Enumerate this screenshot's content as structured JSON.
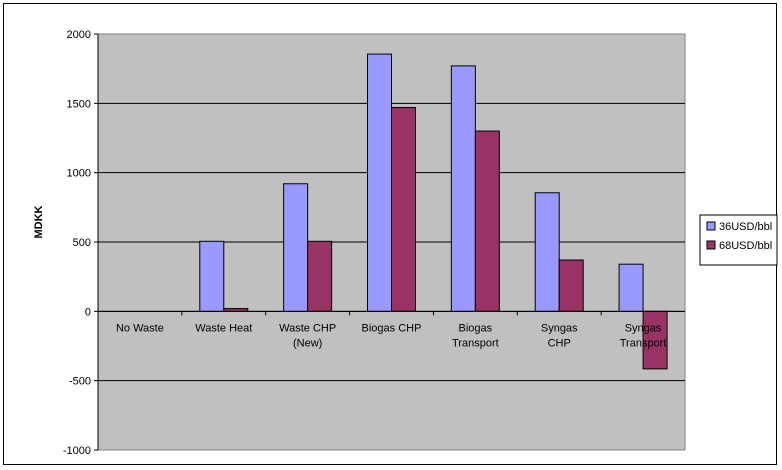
{
  "chart_data": {
    "type": "bar",
    "title": "",
    "xlabel": "",
    "ylabel": "MDKK",
    "ylim": [
      -1000,
      2000
    ],
    "yticks": [
      -1000,
      -500,
      0,
      500,
      1000,
      1500,
      2000
    ],
    "grid": true,
    "legend_position": "right",
    "categories": [
      [
        "No Waste"
      ],
      [
        "Waste Heat"
      ],
      [
        "Waste CHP",
        "(New)"
      ],
      [
        "Biogas CHP"
      ],
      [
        "Biogas",
        "Transport"
      ],
      [
        "Syngas",
        "CHP"
      ],
      [
        "Syngas",
        "Transport"
      ]
    ],
    "series": [
      {
        "name": "36USD/bbl",
        "color": "#9999ff",
        "values": [
          0,
          505,
          920,
          1855,
          1770,
          855,
          340
        ]
      },
      {
        "name": "68USD/bbl",
        "color": "#993366",
        "values": [
          0,
          20,
          505,
          1470,
          1300,
          370,
          -415
        ]
      }
    ],
    "plot_background": "#c0c0c0"
  }
}
